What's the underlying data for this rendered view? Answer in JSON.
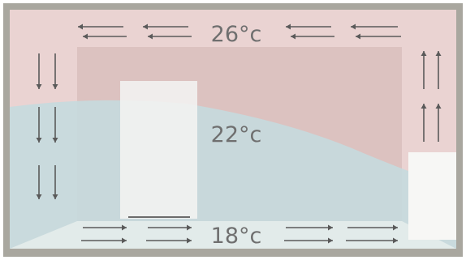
{
  "labels": {
    "top": "26°c",
    "middle": "22°c",
    "bottom": "18°c"
  },
  "colors": {
    "frame": "#a9a79f",
    "warm_zone": "#ead3d2",
    "cool_zone": "#c6dadd",
    "floor": "#e2ebea",
    "wall_panel": "#dcc2c0",
    "door": "#f3f3f1",
    "radiator": "#f7f7f5",
    "arrow": "#5a5a5a",
    "text": "#6f6f6f"
  },
  "arrows": {
    "ceiling": "flowing-left",
    "left_wall": "flowing-down",
    "right_wall": "flowing-up",
    "floor": "flowing-right"
  }
}
